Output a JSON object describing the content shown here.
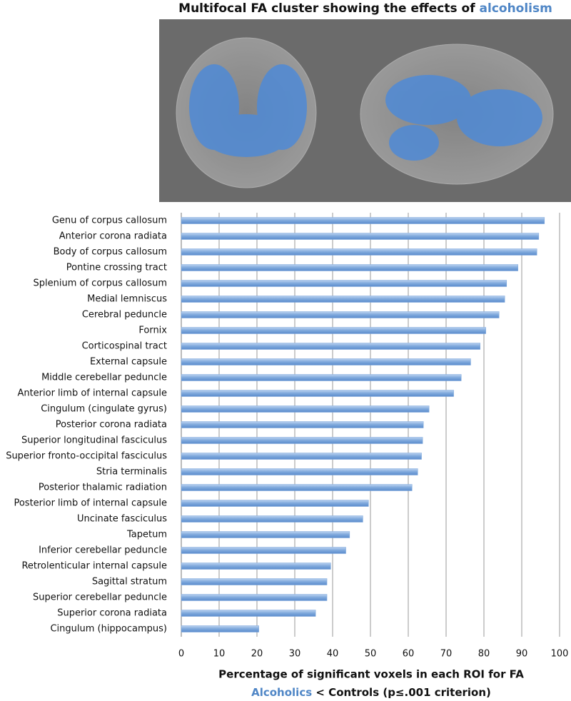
{
  "chart_data": {
    "type": "bar",
    "orientation": "horizontal",
    "title": [
      "Multifocal FA cluster showing the effects of",
      "alcoholism"
    ],
    "xlabel": [
      "Percentage of significant voxels in each ROI for FA",
      "Alcoholics",
      "< Controls (p≤.001 criterion)"
    ],
    "categories": [
      "Genu of corpus callosum",
      "Anterior corona radiata",
      "Body of corpus callosum",
      "Pontine crossing tract",
      "Splenium of corpus callosum",
      "Medial lemniscus",
      "Cerebral peduncle",
      "Fornix",
      "Corticospinal tract",
      "External capsule",
      "Middle cerebellar peduncle",
      "Anterior limb of internal capsule",
      "Cingulum (cingulate gyrus)",
      "Posterior corona radiata",
      "Superior longitudinal fasciculus",
      "Superior fronto-occipital fasciculus",
      "Stria terminalis",
      "Posterior thalamic radiation",
      "Posterior limb of internal capsule",
      "Uncinate fasciculus",
      "Tapetum",
      "Inferior cerebellar peduncle",
      "Retrolenticular internal capsule",
      "Sagittal stratum",
      "Superior cerebellar peduncle",
      "Superior corona radiata",
      "Cingulum (hippocampus)"
    ],
    "values": [
      96,
      94.5,
      94,
      89,
      86,
      85.5,
      84,
      80.5,
      79,
      76.5,
      74,
      72,
      65.5,
      64,
      63.8,
      63.5,
      62.5,
      61,
      49.5,
      48,
      44.5,
      43.5,
      39.5,
      38.5,
      38.5,
      35.5,
      20.5
    ],
    "color": "#7ea8dc",
    "accent_color": "#4f86c6",
    "xlim": [
      0,
      100
    ],
    "xticks": [
      0,
      10,
      20,
      30,
      40,
      50,
      60,
      70,
      80,
      90,
      100
    ],
    "grid": true
  }
}
